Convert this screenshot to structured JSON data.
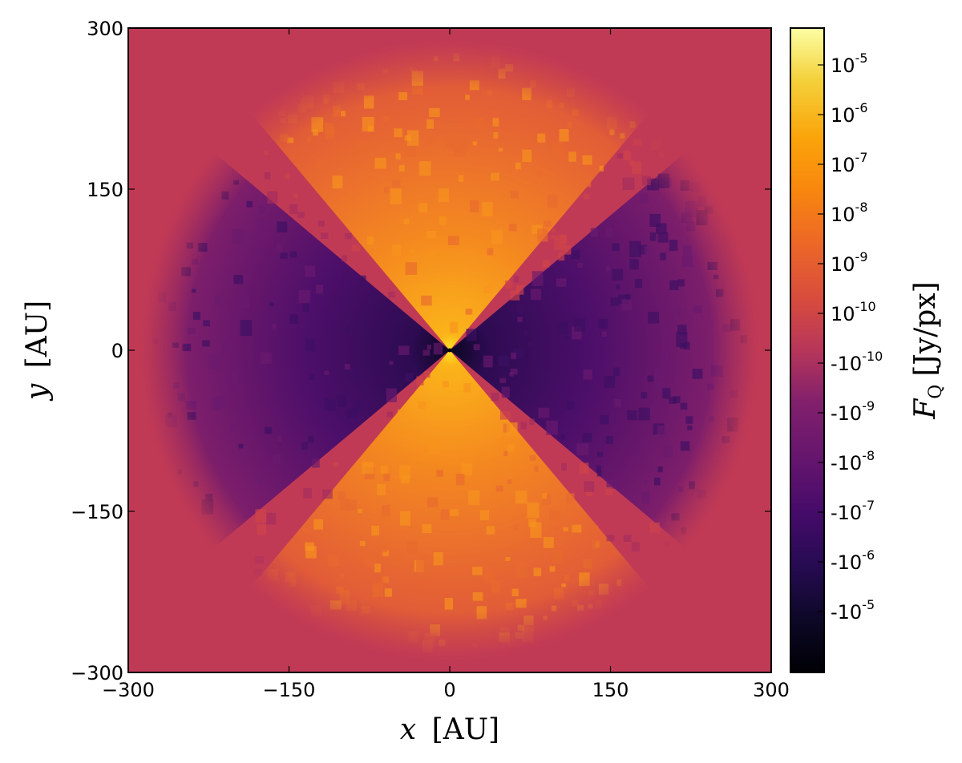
{
  "chart_data": {
    "type": "heatmap",
    "title": "",
    "xlabel": {
      "var": "x",
      "unit": "[AU]"
    },
    "ylabel": {
      "var": "y",
      "unit": "[AU]"
    },
    "xlim": [
      -300,
      300
    ],
    "ylim": [
      -300,
      300
    ],
    "x_ticks": [
      -300,
      -150,
      0,
      150,
      300
    ],
    "y_ticks": [
      -300,
      -150,
      0,
      150,
      300
    ],
    "x_tick_labels": [
      "−300",
      "−150",
      "0",
      "150",
      "300"
    ],
    "y_tick_labels": [
      "−300",
      "−150",
      "0",
      "150",
      "300"
    ],
    "grid": false,
    "colorbar": {
      "label": {
        "var": "F",
        "sub": "Q",
        "unit": "[Jy/px]"
      },
      "scale": "symlog",
      "ticks": [
        {
          "base": "10",
          "exp": "-5",
          "value": 1e-05
        },
        {
          "base": "10",
          "exp": "-6",
          "value": 1e-06
        },
        {
          "base": "10",
          "exp": "-7",
          "value": 1e-07
        },
        {
          "base": "10",
          "exp": "-8",
          "value": 1e-08
        },
        {
          "base": "10",
          "exp": "-9",
          "value": 1e-09
        },
        {
          "base": "10",
          "exp": "-10",
          "value": 1e-10
        },
        {
          "base": "-10",
          "exp": "-10",
          "value": -1e-10
        },
        {
          "base": "-10",
          "exp": "-9",
          "value": -1e-09
        },
        {
          "base": "-10",
          "exp": "-8",
          "value": -1e-08
        },
        {
          "base": "-10",
          "exp": "-7",
          "value": -1e-07
        },
        {
          "base": "-10",
          "exp": "-6",
          "value": -1e-06
        },
        {
          "base": "-10",
          "exp": "-5",
          "value": -1e-05
        }
      ],
      "colormap": "inferno",
      "colors": {
        "top": "#fcffa4",
        "upper": "#f98e09",
        "mid": "#c33b4f",
        "lower": "#57106e",
        "bottom": "#000004"
      }
    },
    "map_description": {
      "background_color": "#c13a55",
      "disk_radius_au": 280,
      "positive_lobe_direction": "vertical",
      "negative_lobe_direction": "horizontal",
      "lobe_half_angle_deg": 40
    }
  }
}
